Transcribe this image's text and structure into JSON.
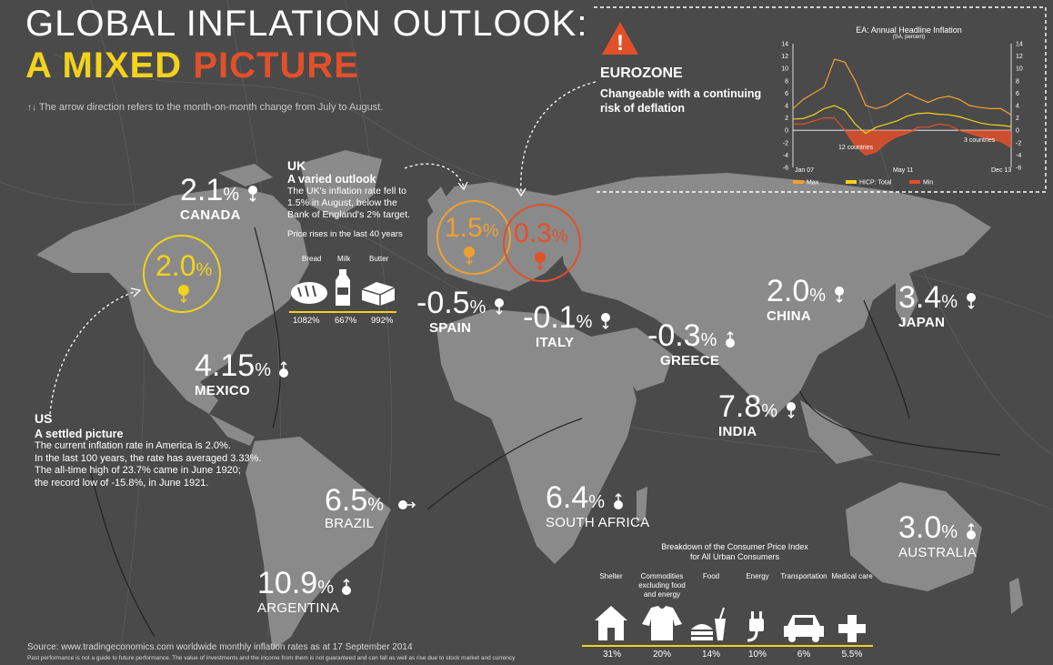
{
  "title": {
    "line1": "GLOBAL INFLATION OUTLOOK:",
    "line2_a": "A MIXED",
    "line2_b": "PICTURE"
  },
  "note": "The arrow direction refers to the month-on-month change from July to August.",
  "colors": {
    "background": "#4a4a4a",
    "land": "#8a8a8a",
    "yellow": "#f2d21c",
    "orange": "#f0a030",
    "red": "#e2502a",
    "white": "#ffffff"
  },
  "countries": [
    {
      "id": "canada",
      "value": "2.1",
      "name": "CANADA",
      "arrow": "down"
    },
    {
      "id": "us",
      "value": "2.0",
      "name": "",
      "arrow": "down"
    },
    {
      "id": "mexico",
      "value": "4.15",
      "name": "MEXICO",
      "arrow": "up"
    },
    {
      "id": "brazil",
      "value": "6.5",
      "name": "BRAZIL",
      "arrow": "right"
    },
    {
      "id": "argentina",
      "value": "10.9",
      "name": "ARGENTINA",
      "arrow": "up"
    },
    {
      "id": "uk",
      "value": "1.5",
      "name": "",
      "arrow": "down"
    },
    {
      "id": "eurozone",
      "value": "0.3",
      "name": "",
      "arrow": "down"
    },
    {
      "id": "spain",
      "value": "-0.5",
      "name": "SPAIN",
      "arrow": "down"
    },
    {
      "id": "italy",
      "value": "-0.1",
      "name": "ITALY",
      "arrow": "down"
    },
    {
      "id": "greece",
      "value": "-0.3",
      "name": "GREECE",
      "arrow": "up"
    },
    {
      "id": "south_africa",
      "value": "6.4",
      "name": "SOUTH AFRICA",
      "arrow": "up"
    },
    {
      "id": "india",
      "value": "7.8",
      "name": "INDIA",
      "arrow": "down"
    },
    {
      "id": "china",
      "value": "2.0",
      "name": "CHINA",
      "arrow": "down"
    },
    {
      "id": "japan",
      "value": "3.4",
      "name": "JAPAN",
      "arrow": "down"
    },
    {
      "id": "australia",
      "value": "3.0",
      "name": "AUSTRALIA",
      "arrow": "up"
    }
  ],
  "pct_sign": "%",
  "uk": {
    "heading": "UK",
    "subheading": "A varied outlook",
    "body": [
      "The UK's inflation rate fell to",
      "1.5% in August, below the",
      "Bank of England's 2% target."
    ],
    "price_title": "Price rises in the last 40 years",
    "items": [
      {
        "label": "Bread",
        "value": "1082%",
        "icon": "bread-icon"
      },
      {
        "label": "Milk",
        "value": "667%",
        "icon": "milk-icon"
      },
      {
        "label": "Butter",
        "value": "992%",
        "icon": "butter-icon"
      }
    ]
  },
  "us": {
    "heading": "US",
    "subheading": "A settled picture",
    "body": [
      "The current inflation rate in America is 2.0%.",
      "In the last 100 years, the rate has averaged 3.33%.",
      "The all-time high of 23.7% came in June 1920;",
      "the record low of -15.8%, in June 1921."
    ]
  },
  "eurozone": {
    "warning_symbol": "!",
    "heading": "EUROZONE",
    "body": [
      "Changeable with a continuing",
      "risk of deflation"
    ]
  },
  "chart_data": [
    {
      "type": "line",
      "title": "EA: Annual Headline Inflation",
      "subtitle": "(SA, percent)",
      "x_tick_labels": [
        "Jan 07",
        "May 11",
        "Dec 13"
      ],
      "ylim": [
        -6,
        14
      ],
      "y_ticks": [
        14,
        12,
        10,
        8,
        6,
        4,
        2,
        0,
        -2,
        -4,
        -6
      ],
      "annotations": [
        "12 countries",
        "3 countries"
      ],
      "legend": [
        "Max",
        "HICP: Total",
        "Min"
      ],
      "series": [
        {
          "name": "Max",
          "color": "#f0a030",
          "values": [
            3.5,
            5,
            6,
            7,
            11.5,
            11,
            8,
            4,
            3.5,
            4,
            5,
            6,
            5.2,
            4.5,
            5.2,
            5.5,
            5,
            4,
            3.7,
            3.5,
            3.5,
            2.5
          ]
        },
        {
          "name": "HICP: Total",
          "color": "#f2d21c",
          "values": [
            1.8,
            1.9,
            2.5,
            3.5,
            4,
            3.2,
            1,
            -0.5,
            0.5,
            1,
            1.5,
            2.3,
            2.7,
            2.8,
            2.6,
            2.5,
            2.2,
            1.7,
            1.2,
            0.9,
            0.8,
            0.6
          ]
        },
        {
          "name": "Min",
          "color": "#e2502a",
          "values": [
            1,
            1,
            1.5,
            2,
            2,
            0,
            -2.5,
            -4,
            -3.5,
            -2,
            -1,
            -0.5,
            0.5,
            0.5,
            1,
            0.8,
            0,
            -0.5,
            -1,
            -1.5,
            -1.8,
            -2.8
          ]
        }
      ]
    },
    {
      "type": "bar",
      "title": "Breakdown of the Consumer Price Index",
      "subtitle": "for All Urban Consumers",
      "categories": [
        "Shelter",
        "Commodities excluding food and energy",
        "Food",
        "Energy",
        "Transportation",
        "Medical care"
      ],
      "values": [
        31,
        20,
        14,
        10,
        6,
        5.5
      ],
      "value_labels": [
        "31%",
        "20%",
        "14%",
        "10%",
        "6%",
        "5.5%"
      ]
    }
  ],
  "source": "Source: www.tradingeconomics.com worldwide monthly inflation rates as at 17 September 2014",
  "disclaimer": "Past performance is not a guide to future performance. The value of investments and the income from them is not guaranteed and can fall as well as rise due to stock market and currency"
}
